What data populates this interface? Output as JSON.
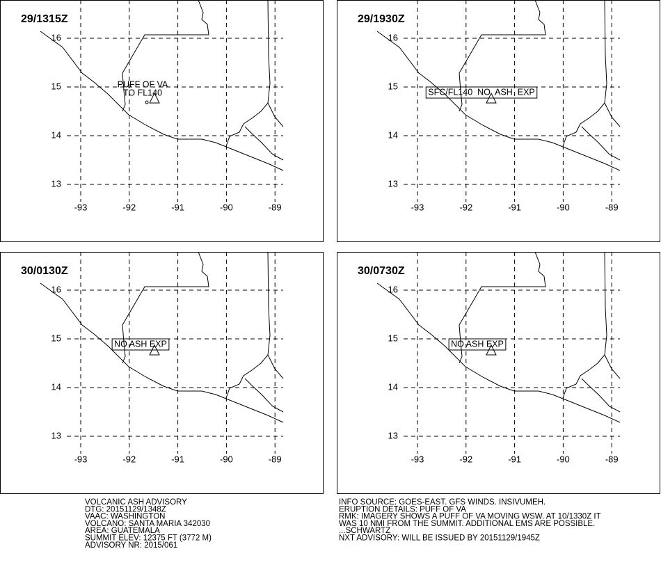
{
  "panels": [
    {
      "time": "29/1315Z",
      "annotation": [
        "PUFF OF VA",
        "TO FL140"
      ]
    },
    {
      "time": "29/1930Z",
      "annotation": [
        "SFC/FL140  NO  ASH  EXP"
      ]
    },
    {
      "time": "30/0130Z",
      "annotation": [
        "NO ASH EXP"
      ]
    },
    {
      "time": "30/0730Z",
      "annotation": [
        "NO ASH EXP"
      ]
    }
  ],
  "lon_ticks": [
    -93,
    -92,
    -91,
    -90,
    -89
  ],
  "lat_ticks": [
    16,
    15,
    14,
    13
  ],
  "footer": {
    "left": [
      "VOLCANIC ASH ADVISORY",
      "DTG: 20151129/1348Z",
      "VAAC: WASHINGTON",
      "VOLCANO: SANTA MARIA 342030",
      "AREA: GUATEMALA",
      "SUMMIT ELEV: 12375 FT (3772 M)",
      "ADVISORY NR: 2015/061"
    ],
    "right": [
      "INFO SOURCE: GOES-EAST. GFS WINDS. INSIVUMEH.",
      "ERUPTION DETAILS: PUFF OF VA",
      "RMK: IMAGERY SHOWS A PUFF OF VA MOVING WSW. AT 10/1330Z IT",
      "WAS 10 NMI FROM THE SUMMIT. ADDITIONAL EMS ARE POSSIBLE.",
      "...SCHWARTZ",
      "NXT ADVISORY: WILL BE ISSUED BY 20151129/1945Z"
    ]
  }
}
